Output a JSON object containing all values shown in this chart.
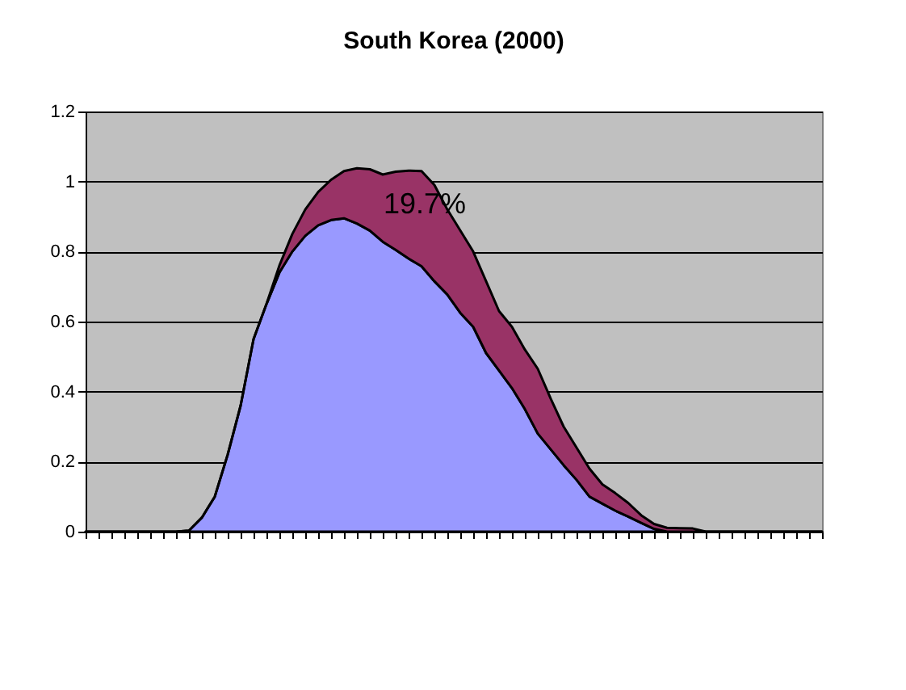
{
  "chart_data": {
    "type": "area",
    "title": "South Korea (2000)",
    "stacked": true,
    "categories": [
      null,
      null,
      null,
      null,
      null,
      null,
      null,
      null,
      null,
      null,
      null,
      null,
      null,
      null,
      null,
      null,
      null,
      null,
      null,
      null,
      null,
      null,
      null,
      null,
      null,
      null,
      null,
      null,
      null,
      null,
      null,
      null,
      null,
      null,
      null,
      null,
      null,
      null,
      null,
      null,
      null,
      null,
      null,
      null,
      null,
      null,
      null,
      null,
      null,
      null,
      null,
      null,
      null,
      null,
      null,
      null,
      null,
      null
    ],
    "series": [
      {
        "color": "#9999ff",
        "values": [
          0,
          0,
          0,
          0,
          0,
          0,
          0,
          0,
          0.003,
          0.04,
          0.1,
          0.22,
          0.36,
          0.55,
          0.65,
          0.74,
          0.8,
          0.845,
          0.875,
          0.89,
          0.895,
          0.88,
          0.86,
          0.828,
          0.805,
          0.78,
          0.758,
          0.715,
          0.677,
          0.625,
          0.585,
          0.51,
          0.46,
          0.41,
          0.35,
          0.28,
          0.235,
          0.19,
          0.148,
          0.1,
          0.08,
          0.06,
          0.043,
          0.025,
          0.008,
          0,
          0,
          0,
          0,
          0,
          0,
          0,
          0,
          0,
          0,
          0,
          0,
          0
        ]
      },
      {
        "color": "#993366",
        "values": [
          0,
          0,
          0,
          0,
          0,
          0,
          0,
          0,
          0,
          0,
          0,
          0,
          0,
          0,
          0,
          0.02,
          0.05,
          0.075,
          0.095,
          0.115,
          0.135,
          0.158,
          0.175,
          0.192,
          0.223,
          0.251,
          0.272,
          0.275,
          0.243,
          0.235,
          0.215,
          0.205,
          0.17,
          0.175,
          0.17,
          0.185,
          0.145,
          0.11,
          0.092,
          0.08,
          0.055,
          0.05,
          0.039,
          0.022,
          0.014,
          0.011,
          0.01,
          0.009,
          0,
          0,
          0,
          0,
          0,
          0,
          0,
          0,
          0,
          0
        ]
      }
    ],
    "ylim": [
      0,
      1.2
    ],
    "yticks": [
      0,
      0.2,
      0.4,
      0.6,
      0.8,
      1,
      1.2
    ],
    "grid": "y",
    "tick_labels": "y",
    "legend": false,
    "annotations": [
      "19.7%"
    ]
  }
}
